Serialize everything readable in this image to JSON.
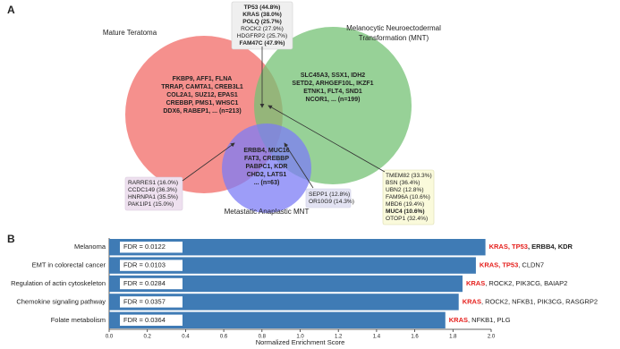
{
  "panel_a": {
    "label": "A",
    "sets": [
      {
        "name_lines": [
          "Mature Teratoma"
        ],
        "genes": [
          "FKBP9, AFF1, FLNA",
          "TRRAP, CAMTA1, CREB3L1",
          "COL2A1, SUZ12, EPAS1",
          "CREBBP, PMS1, WHSC1",
          "DDX6, RABEP1, ... (n=213)"
        ]
      },
      {
        "name_lines": [
          "Melanocytic Neuroectodermal",
          "Transformation (MNT)"
        ],
        "genes": [
          "SLC45A3, SSX1, IDH2",
          "SETD2, ARHGEF10L, IKZF1",
          "ETNK1, FLT4, SND1",
          "NCOR1, ... (n=199)"
        ]
      },
      {
        "name_lines": [
          "Metastatic Anaplastic MNT"
        ],
        "genes": [
          "ERBB4, MUC16",
          "FAT3, CREBBP",
          "PABPC1, KDR",
          "CHD2, LATS1",
          "... (n=63)"
        ]
      }
    ],
    "overlaps": [
      {
        "items": [
          {
            "text": "TP53 (44.8%)",
            "style": "red"
          },
          {
            "text": "KRAS (38.0%)",
            "style": "red"
          },
          {
            "text": "POLQ (25.7%)",
            "style": "red"
          },
          {
            "text": "ROCK2 (27.9%)",
            "style": "plain"
          },
          {
            "text": "HDGFRP2 (25.7%)",
            "style": "plain"
          },
          {
            "text": "FAM47C (47.9%)",
            "style": "bold"
          }
        ]
      },
      {
        "items": [
          {
            "text": "RARRES1 (16.0%)",
            "style": "plain"
          },
          {
            "text": "CCDC149 (36.3%)",
            "style": "plain"
          },
          {
            "text": "HNRNPA1 (35.5%)",
            "style": "plain"
          },
          {
            "text": "PAK1IP1 (15.0%)",
            "style": "plain"
          }
        ]
      },
      {
        "items": [
          {
            "text": "SEPP1 (12.8%)",
            "style": "plain"
          },
          {
            "text": "OR10G9 (14.3%)",
            "style": "plain"
          }
        ]
      },
      {
        "items": [
          {
            "text": "TMEM82 (33.3%)",
            "style": "plain"
          },
          {
            "text": "BSN (36.4%)",
            "style": "plain"
          },
          {
            "text": "UBN2 (12.8%)",
            "style": "plain"
          },
          {
            "text": "FAM96A (10.6%)",
            "style": "plain"
          },
          {
            "text": "MBD6 (19.4%)",
            "style": "plain"
          },
          {
            "text": "MUC4 (10.6%)",
            "style": "bold"
          },
          {
            "text": "OTOP1 (32.4%)",
            "style": "plain"
          }
        ]
      }
    ]
  },
  "chart_data": {
    "type": "bar",
    "orientation": "horizontal",
    "panel_label": "B",
    "categories": [
      "Melanoma",
      "EMT in colorectal cancer",
      "Regulation of actin cytoskeleton",
      "Chemokine signaling pathway",
      "Folate metabolism"
    ],
    "values": [
      1.97,
      1.92,
      1.85,
      1.83,
      1.76
    ],
    "fdr_labels": [
      "FDR = 0.0122",
      "FDR = 0.0103",
      "FDR = 0.0284",
      "FDR = 0.0357",
      "FDR = 0.0364"
    ],
    "gene_labels": [
      [
        {
          "text": "KRAS, TP53",
          "style": "red"
        },
        {
          "text": ", ERBB4, KDR",
          "style": "bold"
        }
      ],
      [
        {
          "text": "KRAS, TP53",
          "style": "red"
        },
        {
          "text": ", CLDN7",
          "style": "plain"
        }
      ],
      [
        {
          "text": "KRAS",
          "style": "red"
        },
        {
          "text": ", ROCK2, PIK3CG, BAIAP2",
          "style": "plain"
        }
      ],
      [
        {
          "text": "KRAS",
          "style": "red"
        },
        {
          "text": ", ROCK2, NFKB1, PIK3CG, RASGRP2",
          "style": "plain"
        }
      ],
      [
        {
          "text": "KRAS",
          "style": "red"
        },
        {
          "text": ", NFKB1, PLG",
          "style": "plain"
        }
      ]
    ],
    "color": "#3f7bb5",
    "xlim": [
      0,
      2.0
    ],
    "xticks": [
      {
        "value": 0,
        "label": "0.0"
      },
      0.2,
      0.4,
      0.6,
      0.8,
      {
        "value": 1,
        "label": "1.0"
      },
      1.2,
      1.4,
      1.6,
      1.8,
      {
        "value": 2,
        "label": "2.0"
      }
    ],
    "xlabel": "Normalized Enrichment Score"
  }
}
